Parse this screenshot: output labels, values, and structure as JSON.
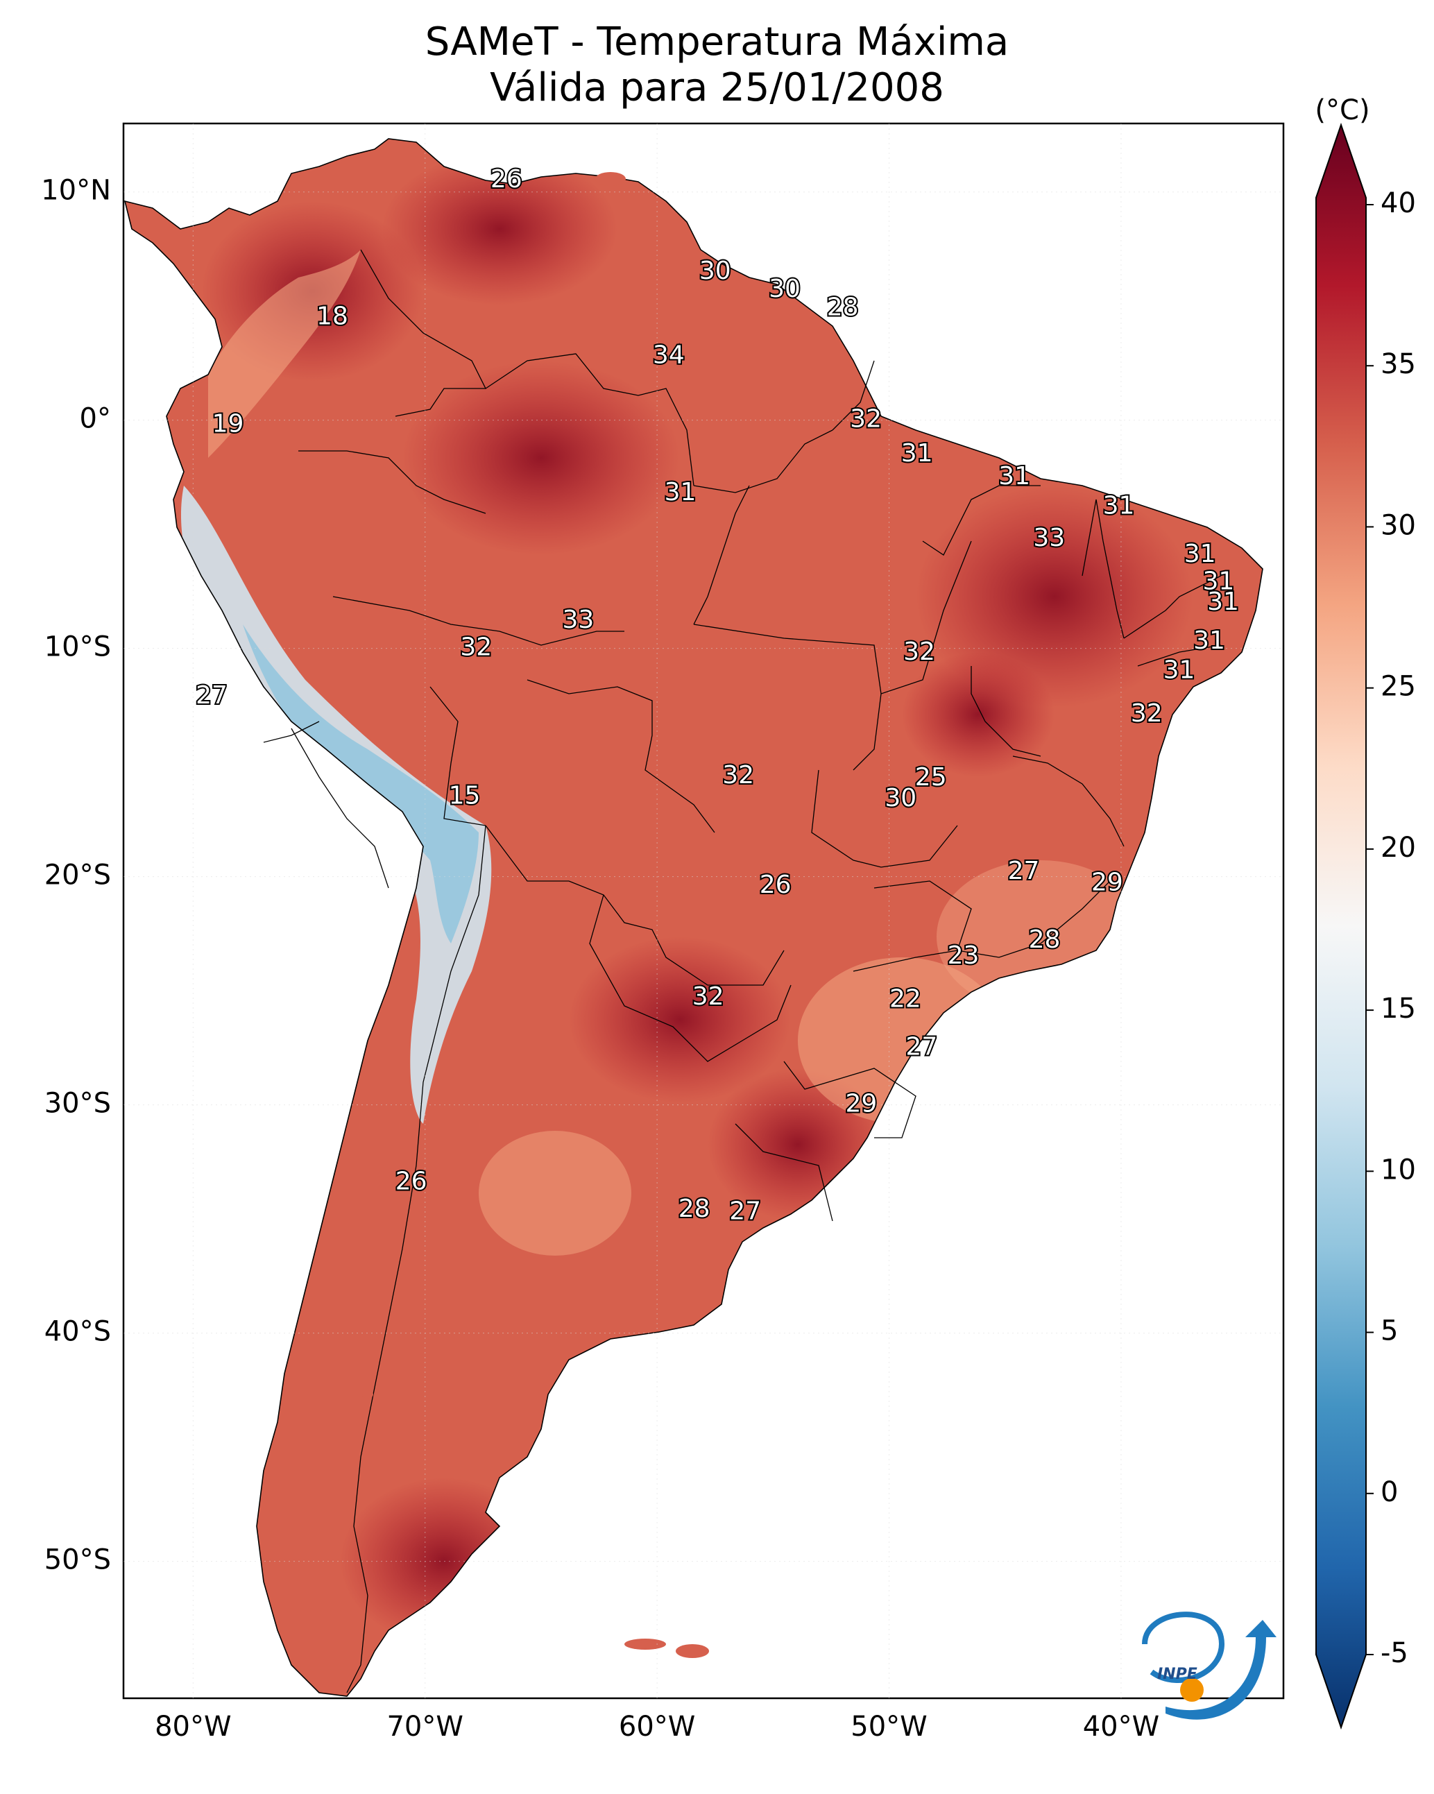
{
  "title": {
    "line1": "SAMeT - Temperatura Máxima",
    "line2": "Válida para 25/01/2008"
  },
  "axes": {
    "lat_labels": [
      "10°N",
      "0°",
      "10°S",
      "20°S",
      "30°S",
      "40°S",
      "50°S"
    ],
    "lat_values": [
      10,
      0,
      -10,
      -20,
      -30,
      -40,
      -50
    ],
    "lon_labels": [
      "80°W",
      "70°W",
      "60°W",
      "50°W",
      "40°W"
    ],
    "lon_values": [
      -80,
      -70,
      -60,
      -50,
      -40
    ],
    "lon_range": [
      -83,
      -33
    ],
    "lat_range": [
      -56,
      13
    ]
  },
  "colorbar": {
    "unit": "(°C)",
    "tick_labels": [
      "40",
      "35",
      "30",
      "25",
      "20",
      "15",
      "10",
      "5",
      "0",
      "-5"
    ],
    "tick_values": [
      40,
      35,
      30,
      25,
      20,
      15,
      10,
      5,
      0,
      -5
    ],
    "range": [
      -5,
      40
    ],
    "colors": [
      "#08306b",
      "#2166ac",
      "#4393c3",
      "#92c5de",
      "#d1e5f0",
      "#f7f7f7",
      "#fddbc7",
      "#f4a582",
      "#d6604d",
      "#b2182b",
      "#67001f"
    ]
  },
  "logo": {
    "text": "INPE",
    "arc_color": "#1f7bbf",
    "dot_color": "#f39200"
  },
  "map_colors": {
    "land_base": "#d6604d",
    "hot": "#b2182b",
    "very_hot": "#8b0e22",
    "mild": "#f4a582",
    "cool": "#d1e5f0",
    "cold": "#92c5de",
    "ocean": "#ffffff"
  },
  "station_labels": [
    {
      "text": "26",
      "lon": -66.5,
      "lat": 10.5
    },
    {
      "text": "18",
      "lon": -74,
      "lat": 4.5
    },
    {
      "text": "30",
      "lon": -57.5,
      "lat": 6.5
    },
    {
      "text": "30",
      "lon": -54.5,
      "lat": 5.7
    },
    {
      "text": "28",
      "lon": -52,
      "lat": 4.9
    },
    {
      "text": "34",
      "lon": -59.5,
      "lat": 2.8
    },
    {
      "text": "19",
      "lon": -78.5,
      "lat": -0.2
    },
    {
      "text": "32",
      "lon": -51,
      "lat": 0.0
    },
    {
      "text": "31",
      "lon": -48.8,
      "lat": -1.5
    },
    {
      "text": "31",
      "lon": -59,
      "lat": -3.2
    },
    {
      "text": "31",
      "lon": -44.6,
      "lat": -2.5
    },
    {
      "text": "31",
      "lon": -40.1,
      "lat": -3.8
    },
    {
      "text": "33",
      "lon": -43.1,
      "lat": -5.2
    },
    {
      "text": "31",
      "lon": -36.6,
      "lat": -5.9
    },
    {
      "text": "31",
      "lon": -35.8,
      "lat": -7.1
    },
    {
      "text": "31",
      "lon": -35.6,
      "lat": -8.0
    },
    {
      "text": "33",
      "lon": -63.4,
      "lat": -8.8
    },
    {
      "text": "32",
      "lon": -67.8,
      "lat": -10.0
    },
    {
      "text": "32",
      "lon": -48.7,
      "lat": -10.2
    },
    {
      "text": "31",
      "lon": -36.2,
      "lat": -9.7
    },
    {
      "text": "31",
      "lon": -37.5,
      "lat": -11.0
    },
    {
      "text": "27",
      "lon": -79.2,
      "lat": -12.1
    },
    {
      "text": "32",
      "lon": -38.9,
      "lat": -12.9
    },
    {
      "text": "15",
      "lon": -68.3,
      "lat": -16.5
    },
    {
      "text": "32",
      "lon": -56.5,
      "lat": -15.6
    },
    {
      "text": "25",
      "lon": -48.2,
      "lat": -15.7
    },
    {
      "text": "30",
      "lon": -49.5,
      "lat": -16.6
    },
    {
      "text": "27",
      "lon": -44.2,
      "lat": -19.8
    },
    {
      "text": "26",
      "lon": -54.9,
      "lat": -20.4
    },
    {
      "text": "29",
      "lon": -40.6,
      "lat": -20.3
    },
    {
      "text": "28",
      "lon": -43.3,
      "lat": -22.8
    },
    {
      "text": "23",
      "lon": -46.8,
      "lat": -23.5
    },
    {
      "text": "32",
      "lon": -57.8,
      "lat": -25.3
    },
    {
      "text": "22",
      "lon": -49.3,
      "lat": -25.4
    },
    {
      "text": "27",
      "lon": -48.6,
      "lat": -27.5
    },
    {
      "text": "29",
      "lon": -51.2,
      "lat": -30.0
    },
    {
      "text": "26",
      "lon": -70.6,
      "lat": -33.4
    },
    {
      "text": "28",
      "lon": -58.4,
      "lat": -34.6
    },
    {
      "text": "27",
      "lon": -56.2,
      "lat": -34.7
    }
  ]
}
